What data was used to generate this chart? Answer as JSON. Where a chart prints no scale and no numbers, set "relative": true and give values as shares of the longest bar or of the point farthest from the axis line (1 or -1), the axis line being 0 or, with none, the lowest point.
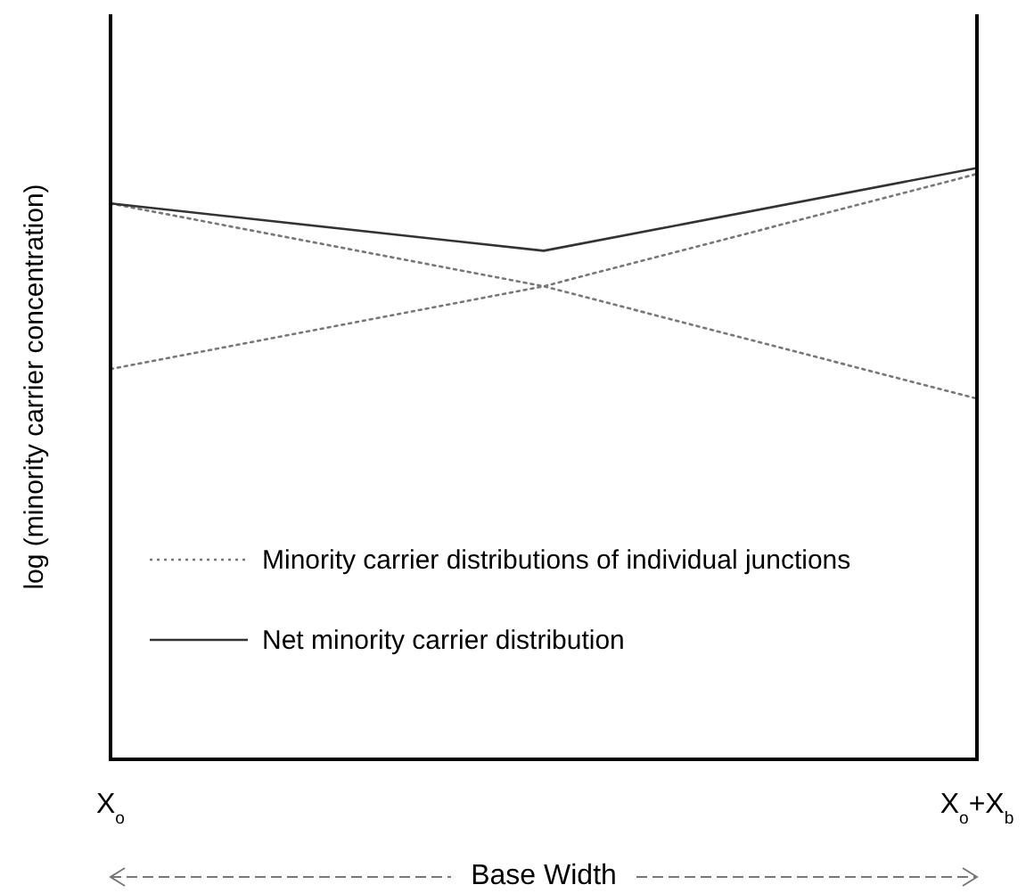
{
  "chart_data": {
    "type": "line",
    "relative": true,
    "xlabel": "Base Width",
    "ylabel": "log (minority carrier concentration)",
    "categories": [
      "X$_{o}$",
      null,
      "X$_{o}$+X$_{b}$"
    ],
    "legend": "bottom left",
    "series": [
      {
        "name": "Minority carrier distributions of individual junctions",
        "color": "#777777",
        "line_style": "dotted",
        "values": [
          0.94,
          0.8,
          0.61
        ]
      },
      {
        "color": "#777777",
        "line_style": "dotted",
        "values": [
          0.66,
          0.8,
          0.99
        ]
      },
      {
        "name": "Net minority carrier distribution",
        "color": "#333333",
        "line_style": "solid",
        "values": [
          0.94,
          0.86,
          1
        ]
      }
    ]
  }
}
